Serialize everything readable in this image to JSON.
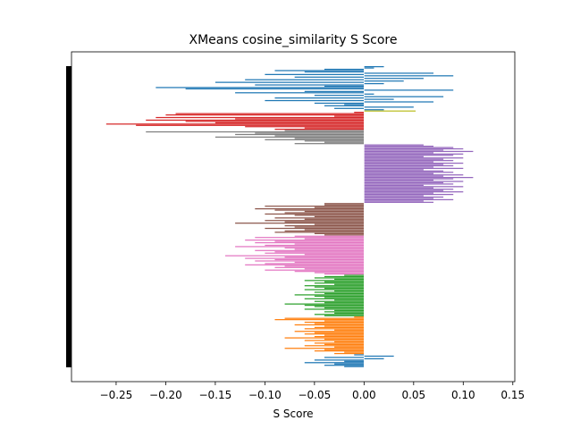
{
  "chart_data": {
    "type": "bar",
    "orientation": "horizontal",
    "title": "XMeans cosine_similarity S Score",
    "xlabel": "S Score",
    "ylabel": "",
    "xlim": [
      -0.295,
      0.152
    ],
    "xticks": [
      -0.25,
      -0.2,
      -0.15,
      -0.1,
      -0.05,
      0.0,
      0.05,
      0.1,
      0.15
    ],
    "xtick_labels": [
      "−0.25",
      "−0.20",
      "−0.15",
      "−0.10",
      "−0.05",
      "0.00",
      "0.05",
      "0.10",
      "0.15"
    ],
    "grid": false,
    "legend": "none",
    "series": [
      {
        "color": "#1f77b4",
        "values": [
          0.02,
          0.01,
          -0.04,
          -0.09,
          -0.06,
          0.07,
          -0.1,
          0.09,
          -0.07,
          0.06,
          -0.12,
          0.04,
          -0.15,
          0.02,
          -0.11,
          -0.04,
          -0.21,
          -0.18,
          0.09,
          -0.06,
          -0.13,
          0.01,
          -0.05,
          0.08,
          -0.09,
          0.03,
          -0.1,
          0.07,
          -0.05,
          -0.02,
          -0.04,
          0.05,
          -0.03,
          0.02
        ]
      },
      {
        "color": "#bcbd22",
        "values": [
          0.052
        ]
      },
      {
        "color": "#d62728",
        "values": [
          -0.01,
          -0.19,
          -0.2,
          -0.03,
          -0.21,
          -0.13,
          -0.22,
          -0.18,
          -0.15,
          -0.26,
          -0.23,
          -0.12,
          -0.06,
          -0.09
        ]
      },
      {
        "color": "#7f7f7f",
        "values": [
          -0.08,
          -0.22,
          -0.11,
          -0.13,
          -0.09,
          -0.15,
          -0.07,
          -0.1,
          -0.06,
          -0.04,
          -0.07
        ]
      },
      {
        "color": "#9467bd",
        "values": [
          0.06,
          0.07,
          0.09,
          0.1,
          0.08,
          0.11,
          0.07,
          0.1,
          0.09,
          0.06,
          0.1,
          0.08,
          0.09,
          0.07,
          0.1,
          0.08,
          0.09,
          0.07,
          0.1,
          0.06,
          0.08,
          0.09,
          0.07,
          0.1,
          0.08,
          0.11,
          0.09,
          0.07,
          0.1,
          0.08,
          0.09,
          0.06,
          0.1,
          0.07,
          0.09,
          0.08,
          0.1,
          0.07,
          0.09,
          0.06,
          0.08,
          0.07,
          0.09,
          0.06,
          0.07
        ]
      },
      {
        "color": "#8c564b",
        "values": [
          -0.04,
          -0.04,
          -0.1,
          -0.05,
          -0.11,
          -0.09,
          -0.06,
          -0.08,
          -0.1,
          -0.07,
          -0.05,
          -0.09,
          -0.06,
          -0.1,
          -0.08,
          -0.13,
          -0.05,
          -0.08,
          -0.07,
          -0.1,
          -0.06,
          -0.08,
          -0.09,
          -0.05,
          -0.04
        ]
      },
      {
        "color": "#e377c2",
        "values": [
          -0.07,
          -0.11,
          -0.06,
          -0.12,
          -0.09,
          -0.11,
          -0.07,
          -0.1,
          -0.13,
          -0.08,
          -0.07,
          -0.11,
          -0.09,
          -0.1,
          -0.06,
          -0.14,
          -0.08,
          -0.12,
          -0.09,
          -0.11,
          -0.07,
          -0.1,
          -0.12,
          -0.08,
          -0.09,
          -0.06,
          -0.1,
          -0.07,
          -0.05,
          -0.04
        ]
      },
      {
        "color": "#2ca02c",
        "values": [
          -0.02,
          -0.04,
          -0.05,
          -0.03,
          -0.06,
          -0.04,
          -0.05,
          -0.03,
          -0.06,
          -0.05,
          -0.04,
          -0.06,
          -0.03,
          -0.05,
          -0.04,
          -0.07,
          -0.05,
          -0.04,
          -0.06,
          -0.03,
          -0.05,
          -0.04,
          -0.08,
          -0.06,
          -0.05,
          -0.04,
          -0.06,
          -0.03,
          -0.04,
          -0.03,
          -0.05,
          -0.04
        ]
      },
      {
        "color": "#ff7f0e",
        "values": [
          -0.01,
          -0.08,
          -0.09,
          -0.04,
          -0.06,
          -0.05,
          -0.07,
          -0.04,
          -0.05,
          -0.06,
          -0.03,
          -0.07,
          -0.05,
          -0.06,
          -0.04,
          -0.05,
          -0.08,
          -0.04,
          -0.06,
          -0.03,
          -0.05,
          -0.04,
          -0.06,
          -0.03,
          -0.08,
          -0.04,
          -0.05,
          -0.02,
          -0.03
        ]
      },
      {
        "color": "#1f77b4",
        "values": [
          -0.01,
          0.03,
          -0.04,
          0.02,
          -0.05,
          -0.02,
          -0.06,
          -0.03,
          -0.04,
          -0.02
        ]
      }
    ]
  }
}
